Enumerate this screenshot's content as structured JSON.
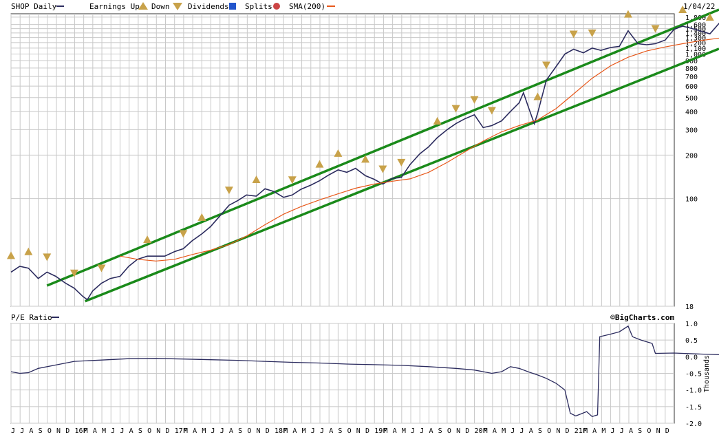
{
  "chart_data": [
    {
      "type": "line",
      "scale": "log",
      "legend": {
        "series_label": "SHOP Daily",
        "earnings_label": "Earnings Up",
        "down_label": "Down",
        "dividends_label": "Dividends",
        "splits_label": "Splits",
        "sma_label": "SMA(200)"
      },
      "date_label": "1/04/22",
      "ylim": [
        18,
        1900
      ],
      "y_ticks": [
        {
          "v": 1800,
          "t": "1,800"
        },
        {
          "v": 1600,
          "t": "1,600"
        },
        {
          "v": 1500,
          "t": "1,500"
        },
        {
          "v": 1400,
          "t": "1,400"
        },
        {
          "v": 1300,
          "t": "1,300"
        },
        {
          "v": 1200,
          "t": "1,200"
        },
        {
          "v": 1100,
          "t": "1,100"
        },
        {
          "v": 1000,
          "t": "1,000"
        },
        {
          "v": 900,
          "t": "900"
        },
        {
          "v": 800,
          "t": "800"
        },
        {
          "v": 700,
          "t": "700"
        },
        {
          "v": 600,
          "t": "600"
        },
        {
          "v": 500,
          "t": "500"
        },
        {
          "v": 400,
          "t": "400"
        },
        {
          "v": 300,
          "t": "300"
        },
        {
          "v": 200,
          "t": "200"
        },
        {
          "v": 100,
          "t": "100"
        },
        {
          "v": 18,
          "t": "18"
        }
      ],
      "series": [
        {
          "name": "SHOP Daily",
          "color": "#2b2b5e",
          "points": [
            [
              2015.42,
              31
            ],
            [
              2015.5,
              34
            ],
            [
              2015.58,
              33
            ],
            [
              2015.67,
              28
            ],
            [
              2015.75,
              31
            ],
            [
              2015.83,
              29
            ],
            [
              2015.92,
              26
            ],
            [
              2016.0,
              24
            ],
            [
              2016.08,
              21
            ],
            [
              2016.12,
              20
            ],
            [
              2016.17,
              23
            ],
            [
              2016.25,
              26
            ],
            [
              2016.33,
              28
            ],
            [
              2016.42,
              29
            ],
            [
              2016.5,
              34
            ],
            [
              2016.58,
              38
            ],
            [
              2016.67,
              40
            ],
            [
              2016.75,
              40
            ],
            [
              2016.83,
              40
            ],
            [
              2016.92,
              43
            ],
            [
              2017.0,
              45
            ],
            [
              2017.08,
              51
            ],
            [
              2017.17,
              57
            ],
            [
              2017.25,
              64
            ],
            [
              2017.33,
              75
            ],
            [
              2017.42,
              90
            ],
            [
              2017.5,
              97
            ],
            [
              2017.58,
              106
            ],
            [
              2017.67,
              104
            ],
            [
              2017.75,
              117
            ],
            [
              2017.83,
              112
            ],
            [
              2017.92,
              102
            ],
            [
              2018.0,
              106
            ],
            [
              2018.08,
              116
            ],
            [
              2018.17,
              124
            ],
            [
              2018.25,
              133
            ],
            [
              2018.33,
              145
            ],
            [
              2018.42,
              158
            ],
            [
              2018.5,
              152
            ],
            [
              2018.58,
              162
            ],
            [
              2018.67,
              144
            ],
            [
              2018.75,
              136
            ],
            [
              2018.83,
              126
            ],
            [
              2018.92,
              138
            ],
            [
              2019.0,
              140
            ],
            [
              2019.08,
              172
            ],
            [
              2019.17,
              204
            ],
            [
              2019.25,
              228
            ],
            [
              2019.33,
              264
            ],
            [
              2019.42,
              300
            ],
            [
              2019.5,
              330
            ],
            [
              2019.58,
              356
            ],
            [
              2019.67,
              380
            ],
            [
              2019.75,
              310
            ],
            [
              2019.83,
              320
            ],
            [
              2019.92,
              345
            ],
            [
              2020.0,
              400
            ],
            [
              2020.08,
              460
            ],
            [
              2020.12,
              540
            ],
            [
              2020.17,
              420
            ],
            [
              2020.22,
              330
            ],
            [
              2020.25,
              390
            ],
            [
              2020.33,
              660
            ],
            [
              2020.42,
              820
            ],
            [
              2020.5,
              1000
            ],
            [
              2020.58,
              1080
            ],
            [
              2020.67,
              1020
            ],
            [
              2020.75,
              1100
            ],
            [
              2020.83,
              1060
            ],
            [
              2020.92,
              1110
            ],
            [
              2021.0,
              1130
            ],
            [
              2021.08,
              1450
            ],
            [
              2021.17,
              1180
            ],
            [
              2021.25,
              1160
            ],
            [
              2021.33,
              1180
            ],
            [
              2021.42,
              1250
            ],
            [
              2021.5,
              1480
            ],
            [
              2021.58,
              1560
            ],
            [
              2021.67,
              1500
            ],
            [
              2021.75,
              1440
            ],
            [
              2021.83,
              1380
            ],
            [
              2021.92,
              1650
            ],
            [
              2021.96,
              1500
            ],
            [
              2022.0,
              1350
            ],
            [
              2022.01,
              1300
            ]
          ]
        },
        {
          "name": "SMA(200)",
          "color": "#e8581a",
          "points": [
            [
              2016.42,
              40
            ],
            [
              2016.58,
              38
            ],
            [
              2016.75,
              37
            ],
            [
              2016.92,
              38
            ],
            [
              2017.08,
              41
            ],
            [
              2017.25,
              44
            ],
            [
              2017.42,
              48
            ],
            [
              2017.58,
              55
            ],
            [
              2017.75,
              66
            ],
            [
              2017.92,
              78
            ],
            [
              2018.08,
              88
            ],
            [
              2018.25,
              98
            ],
            [
              2018.42,
              108
            ],
            [
              2018.58,
              118
            ],
            [
              2018.75,
              126
            ],
            [
              2018.92,
              132
            ],
            [
              2019.08,
              137
            ],
            [
              2019.25,
              152
            ],
            [
              2019.42,
              178
            ],
            [
              2019.58,
              210
            ],
            [
              2019.75,
              250
            ],
            [
              2019.92,
              290
            ],
            [
              2020.08,
              320
            ],
            [
              2020.25,
              350
            ],
            [
              2020.42,
              420
            ],
            [
              2020.58,
              530
            ],
            [
              2020.75,
              680
            ],
            [
              2020.92,
              830
            ],
            [
              2021.08,
              950
            ],
            [
              2021.25,
              1050
            ],
            [
              2021.42,
              1120
            ],
            [
              2021.58,
              1180
            ],
            [
              2021.75,
              1240
            ],
            [
              2021.92,
              1290
            ],
            [
              2022.01,
              1310
            ]
          ]
        }
      ]
    },
    {
      "type": "line",
      "legend": {
        "series_label": "P/E Ratio"
      },
      "watermark": "©BigCharts.com",
      "ylabel": "Thousands",
      "ylim": [
        -2.0,
        1.0
      ],
      "y_ticks": [
        {
          "v": 1.0,
          "t": "1.0"
        },
        {
          "v": 0.5,
          "t": "0.5"
        },
        {
          "v": 0.0,
          "t": "0.0"
        },
        {
          "v": -0.5,
          "t": "-0.5"
        },
        {
          "v": -1.0,
          "t": "-1.0"
        },
        {
          "v": -1.5,
          "t": "-1.5"
        },
        {
          "v": -2.0,
          "t": "-2.0"
        }
      ],
      "series": [
        {
          "name": "P/E Ratio",
          "color": "#2b2b5e",
          "points": [
            [
              2015.42,
              -0.45
            ],
            [
              2015.5,
              -0.5
            ],
            [
              2015.58,
              -0.48
            ],
            [
              2015.67,
              -0.35
            ],
            [
              2015.83,
              -0.25
            ],
            [
              2016.0,
              -0.14
            ],
            [
              2016.25,
              -0.1
            ],
            [
              2016.5,
              -0.06
            ],
            [
              2016.75,
              -0.05
            ],
            [
              2017.0,
              -0.07
            ],
            [
              2017.25,
              -0.09
            ],
            [
              2017.5,
              -0.11
            ],
            [
              2017.75,
              -0.14
            ],
            [
              2018.0,
              -0.17
            ],
            [
              2018.25,
              -0.19
            ],
            [
              2018.5,
              -0.22
            ],
            [
              2018.75,
              -0.24
            ],
            [
              2019.0,
              -0.26
            ],
            [
              2019.25,
              -0.3
            ],
            [
              2019.5,
              -0.35
            ],
            [
              2019.67,
              -0.4
            ],
            [
              2019.83,
              -0.5
            ],
            [
              2019.92,
              -0.45
            ],
            [
              2020.0,
              -0.3
            ],
            [
              2020.08,
              -0.35
            ],
            [
              2020.17,
              -0.46
            ],
            [
              2020.25,
              -0.55
            ],
            [
              2020.33,
              -0.65
            ],
            [
              2020.42,
              -0.8
            ],
            [
              2020.5,
              -1.0
            ],
            [
              2020.55,
              -1.7
            ],
            [
              2020.6,
              -1.78
            ],
            [
              2020.7,
              -1.65
            ],
            [
              2020.75,
              -1.8
            ],
            [
              2020.8,
              -1.75
            ],
            [
              2020.82,
              0.6
            ],
            [
              2020.92,
              0.68
            ],
            [
              2021.0,
              0.75
            ],
            [
              2021.08,
              0.92
            ],
            [
              2021.12,
              0.6
            ],
            [
              2021.2,
              0.5
            ],
            [
              2021.3,
              0.4
            ],
            [
              2021.33,
              0.1
            ],
            [
              2021.5,
              0.11
            ],
            [
              2021.75,
              0.08
            ],
            [
              2022.01,
              0.05
            ]
          ]
        }
      ]
    }
  ],
  "x_axis": {
    "month_labels": [
      "J",
      "J",
      "A",
      "S",
      "O",
      "N",
      "D",
      "16F",
      "M",
      "A",
      "M",
      "J",
      "J",
      "A",
      "S",
      "O",
      "N",
      "D",
      "17F",
      "M",
      "A",
      "M",
      "J",
      "J",
      "A",
      "S",
      "O",
      "N",
      "D",
      "18F",
      "M",
      "A",
      "M",
      "J",
      "J",
      "A",
      "S",
      "O",
      "N",
      "D",
      "19F",
      "M",
      "A",
      "M",
      "J",
      "J",
      "A",
      "S",
      "O",
      "N",
      "D",
      "20F",
      "M",
      "A",
      "M",
      "J",
      "J",
      "A",
      "S",
      "O",
      "N",
      "D",
      "21F",
      "M",
      "A",
      "M",
      "J",
      "J",
      "A",
      "S",
      "O",
      "N",
      "D"
    ]
  },
  "annotations": {
    "earnings_up": [
      2015.42,
      2015.58,
      2016.67,
      2017.17,
      2017.67,
      2018.25,
      2018.42,
      2018.67,
      2019.33,
      2020.25,
      2021.08,
      2021.58,
      2021.83
    ],
    "earnings_down": [
      2015.75,
      2016.0,
      2016.25,
      2017.0,
      2017.42,
      2018.0,
      2018.83,
      2019.0,
      2019.5,
      2019.67,
      2019.83,
      2020.33,
      2020.58,
      2020.75,
      2021.33
    ],
    "colors": {
      "marker": "#c8a24a",
      "dividends": "#2255cc",
      "splits": "#cc4444",
      "trend": "#1a8a1a"
    }
  }
}
